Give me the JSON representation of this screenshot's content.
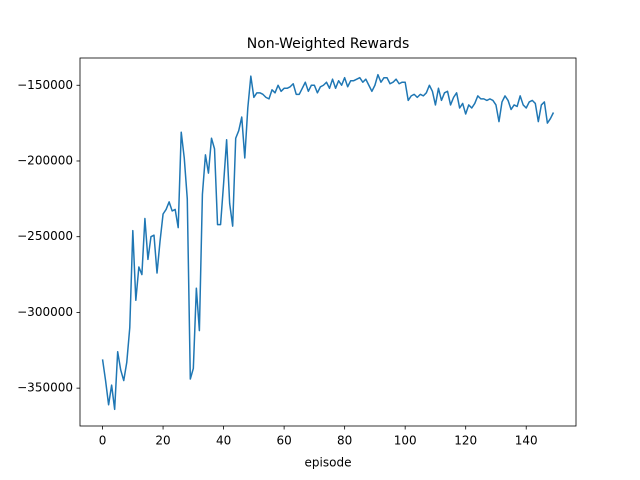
{
  "chart_data": {
    "type": "line",
    "title": "Non-Weighted Rewards",
    "x_label": "episode",
    "x": [
      0,
      1,
      2,
      3,
      4,
      5,
      6,
      7,
      8,
      9,
      10,
      11,
      12,
      13,
      14,
      15,
      16,
      17,
      18,
      19,
      20,
      21,
      22,
      23,
      24,
      25,
      26,
      27,
      28,
      29,
      30,
      31,
      32,
      33,
      34,
      35,
      36,
      37,
      38,
      39,
      40,
      41,
      42,
      43,
      44,
      45,
      46,
      47,
      48,
      49,
      50,
      51,
      52,
      53,
      54,
      55,
      56,
      57,
      58,
      59,
      60,
      61,
      62,
      63,
      64,
      65,
      66,
      67,
      68,
      69,
      70,
      71,
      72,
      73,
      74,
      75,
      76,
      77,
      78,
      79,
      80,
      81,
      82,
      83,
      84,
      85,
      86,
      87,
      88,
      89,
      90,
      91,
      92,
      93,
      94,
      95,
      96,
      97,
      98,
      99,
      100,
      101,
      102,
      103,
      104,
      105,
      106,
      107,
      108,
      109,
      110,
      111,
      112,
      113,
      114,
      115,
      116,
      117,
      118,
      119,
      120,
      121,
      122,
      123,
      124,
      125,
      126,
      127,
      128,
      129,
      130,
      131,
      132,
      133,
      134,
      135,
      136,
      137,
      138,
      139,
      140,
      141,
      142,
      143,
      144,
      145,
      146,
      147,
      148,
      149
    ],
    "series": [
      {
        "color": "#1f77b4",
        "values": [
          -331000,
          -345000,
          -361000,
          -348000,
          -364000,
          -326000,
          -338000,
          -345000,
          -333000,
          -310000,
          -246000,
          -292000,
          -270000,
          -275000,
          -238000,
          -265000,
          -250000,
          -249000,
          -274000,
          -253000,
          -235000,
          -232000,
          -227000,
          -233000,
          -232000,
          -244000,
          -181000,
          -198000,
          -225000,
          -344000,
          -337000,
          -284000,
          -312000,
          -222000,
          -196000,
          -208000,
          -185000,
          -192000,
          -242000,
          -242000,
          -215000,
          -186000,
          -228000,
          -243000,
          -185000,
          -180000,
          -171000,
          -198000,
          -165000,
          -144000,
          -158000,
          -155000,
          -155000,
          -156000,
          -158000,
          -159000,
          -153000,
          -155000,
          -150000,
          -154000,
          -152000,
          -152000,
          -151000,
          -149000,
          -156000,
          -156000,
          -152000,
          -148000,
          -154000,
          -150000,
          -150000,
          -155000,
          -151000,
          -150000,
          -148000,
          -152000,
          -146000,
          -152000,
          -147000,
          -150000,
          -145000,
          -151000,
          -147000,
          -147000,
          -146000,
          -145000,
          -148000,
          -146000,
          -150000,
          -154000,
          -150000,
          -143000,
          -148000,
          -145000,
          -145000,
          -149000,
          -148000,
          -146000,
          -149000,
          -148000,
          -148000,
          -160000,
          -157000,
          -156000,
          -158000,
          -156000,
          -157000,
          -155000,
          -150000,
          -154000,
          -163000,
          -152000,
          -160000,
          -155000,
          -154000,
          -163000,
          -158000,
          -155000,
          -165000,
          -162000,
          -169000,
          -163000,
          -165000,
          -162000,
          -157000,
          -159000,
          -159000,
          -160000,
          -159000,
          -160000,
          -163000,
          -174000,
          -161000,
          -157000,
          -160000,
          -166000,
          -163000,
          -164000,
          -157000,
          -163000,
          -165000,
          -161000,
          -160000,
          -162000,
          -174000,
          -163000,
          -161000,
          -175000,
          -172000,
          -168000
        ]
      }
    ],
    "xlim": [
      -7.45,
      156.45
    ],
    "ylim": [
      -375000,
      -132000
    ],
    "xticks": [
      0,
      20,
      40,
      60,
      80,
      100,
      120,
      140
    ],
    "yticks": [
      {
        "value": -350000,
        "label": "−350000"
      },
      {
        "value": -300000,
        "label": "−300000"
      },
      {
        "value": -250000,
        "label": "−250000"
      },
      {
        "value": -200000,
        "label": "−200000"
      },
      {
        "value": -150000,
        "label": "−150000"
      }
    ],
    "grid": false
  }
}
